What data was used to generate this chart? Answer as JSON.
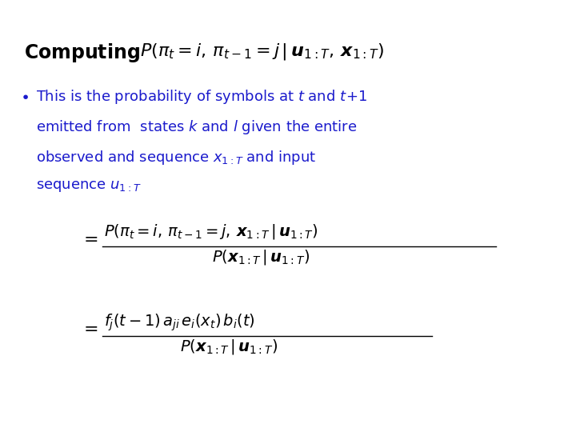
{
  "background_color": "#ffffff",
  "text_color": "#000000",
  "blue_color": "#1a1acc",
  "figsize": [
    7.2,
    5.4
  ],
  "dpi": 100,
  "title_bold": "Computing",
  "title_formula": "$P(\\pi_t = i,\\, \\pi_{t-1} = j\\,|\\,\\boldsymbol{u}_{1:T},\\, \\boldsymbol{x}_{1:T})$",
  "bullet_lines": [
    "This is the probability of symbols at $t$ and $t\\!+\\!1$",
    "emitted from  states $k$ and $l$ given the entire",
    "observed and sequence $x_{1:T}$ and input",
    "sequence $u_{1:T}$"
  ],
  "eq1_num": "$P(\\pi_t = i,\\, \\pi_{t-1} = j,\\, \\boldsymbol{x}_{1:T}\\,|\\,\\boldsymbol{u}_{1:T})$",
  "eq1_den": "$P(\\boldsymbol{x}_{1:T}\\,|\\,\\boldsymbol{u}_{1:T})$",
  "eq2_num": "$f_j(t-1)\\,a_{ji}\\,e_i(x_t)\\,b_i(t)$",
  "eq2_den": "$P(\\boldsymbol{x}_{1:T}\\,|\\,\\boldsymbol{u}_{1:T})$"
}
